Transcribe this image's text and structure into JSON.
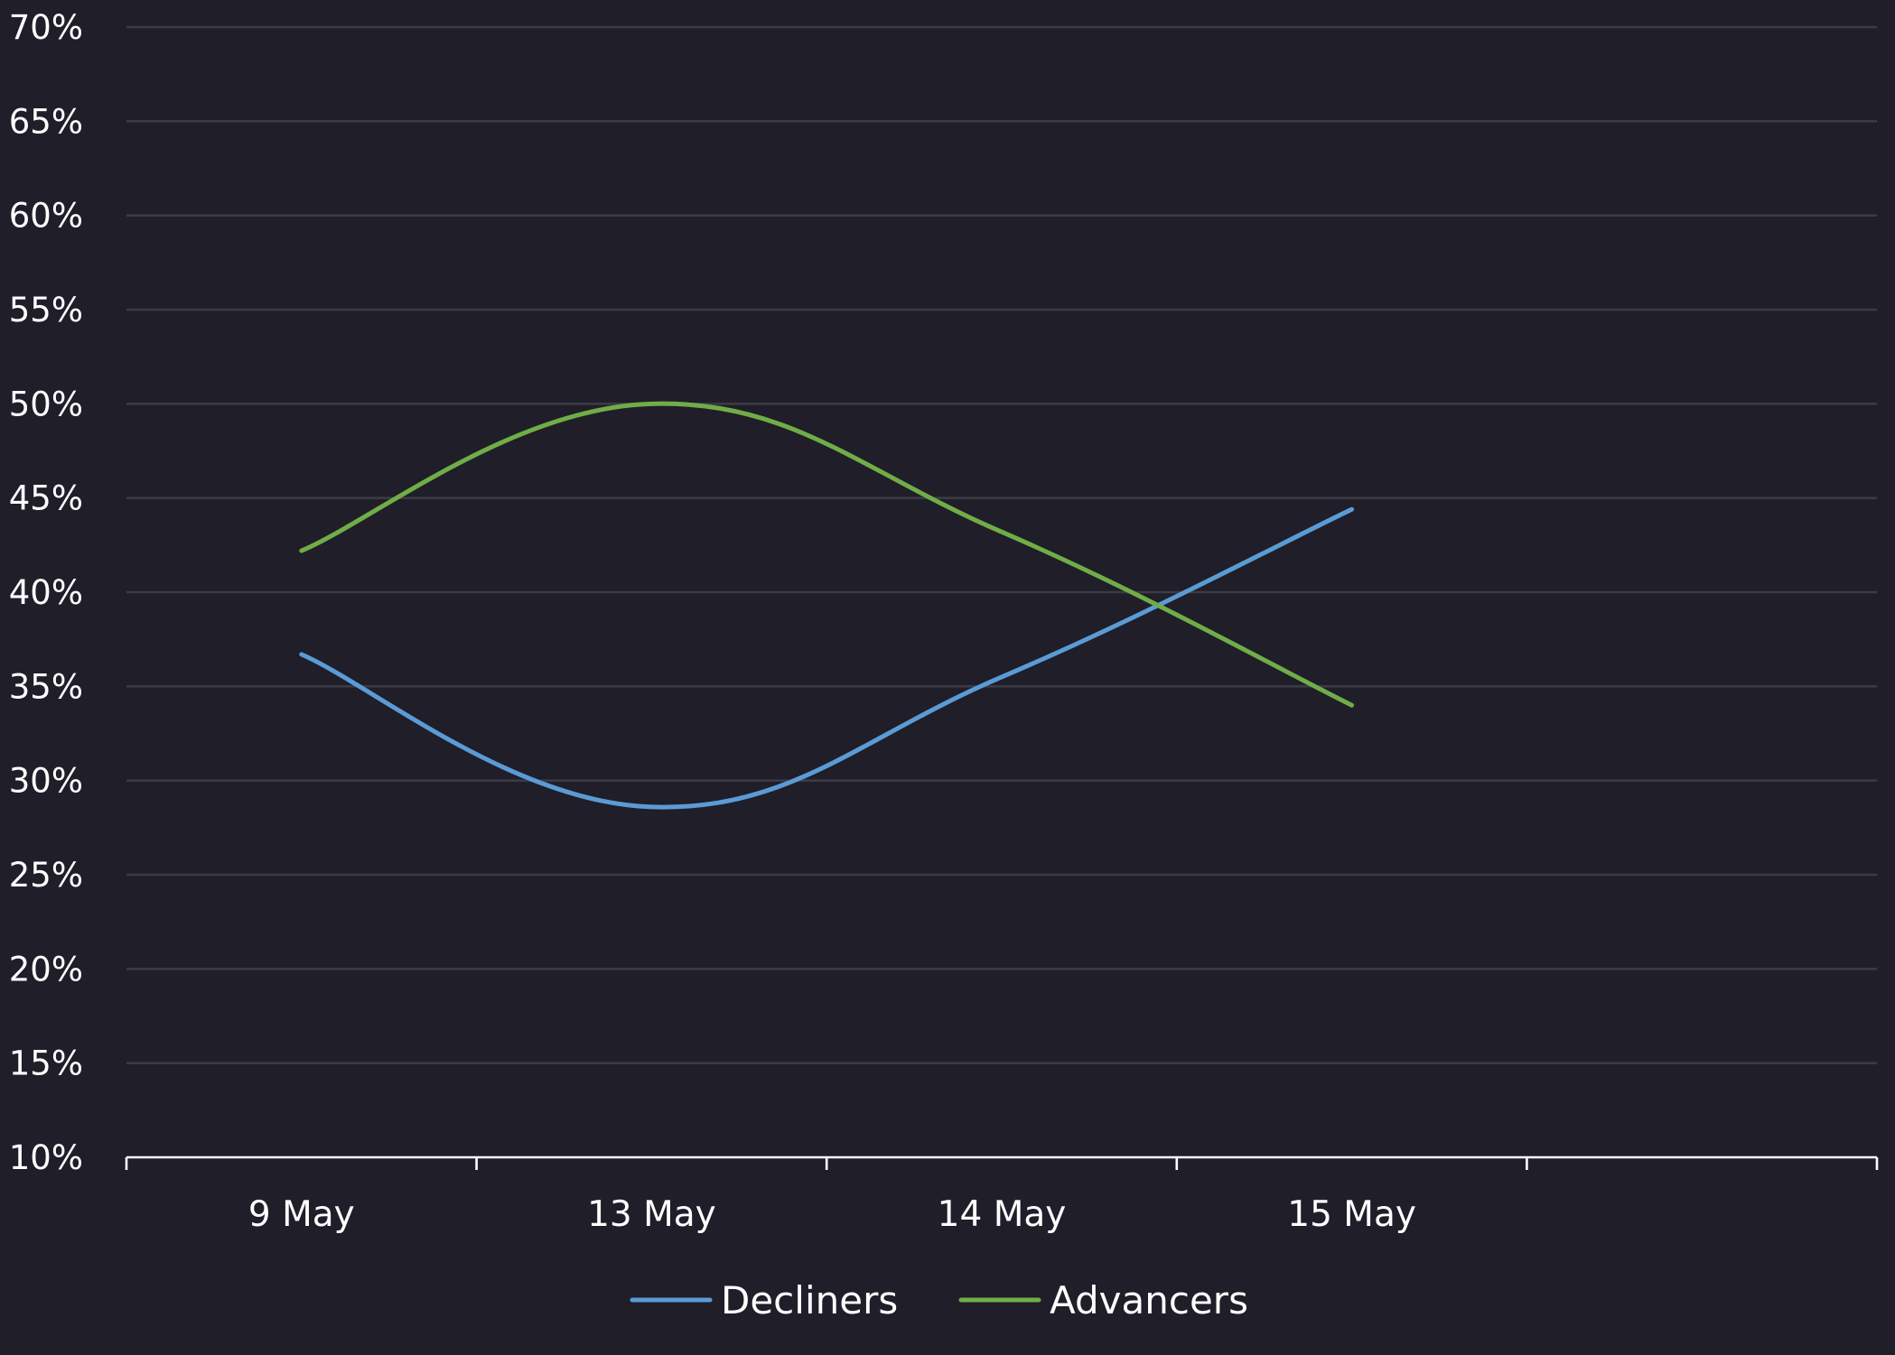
{
  "chart_data": {
    "type": "line",
    "categories": [
      "9 May",
      "13 May",
      "14 May",
      "15 May"
    ],
    "category_slots": 5,
    "ylim": [
      10,
      70
    ],
    "yticks": [
      10,
      15,
      20,
      25,
      30,
      35,
      40,
      45,
      50,
      55,
      60,
      65,
      70
    ],
    "ytick_suffix": "%",
    "ytick_labels": [
      "10%",
      "15%",
      "20%",
      "25%",
      "30%",
      "35%",
      "40%",
      "45%",
      "50%",
      "55%",
      "60%",
      "65%",
      "70%"
    ],
    "grid": true,
    "smooth": true,
    "legend_position": "bottom-center",
    "series": [
      {
        "name": "Decliners",
        "color": "#5b9bd5",
        "values": [
          36.7,
          28.6,
          35.5,
          44.4
        ]
      },
      {
        "name": "Advancers",
        "color": "#70ad47",
        "values": [
          42.2,
          50.0,
          43.2,
          34.0
        ]
      }
    ]
  }
}
